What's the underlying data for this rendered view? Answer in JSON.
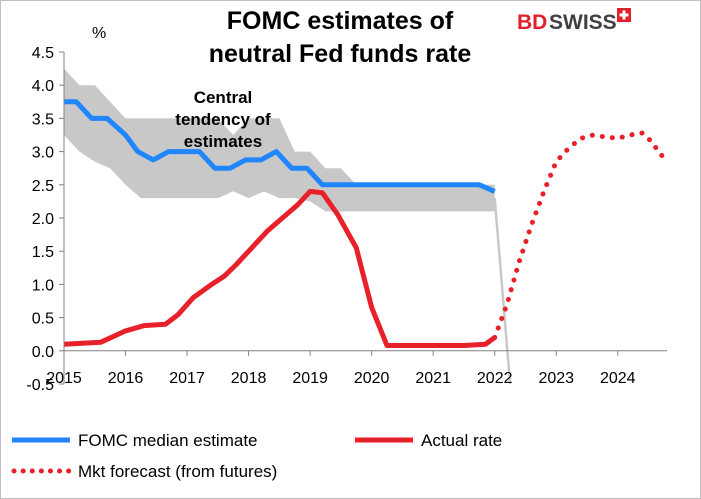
{
  "chart_data": {
    "type": "line",
    "title_lines": [
      "FOMC estimates of",
      "neutral Fed funds rate"
    ],
    "ylabel": "%",
    "ylim": [
      -0.5,
      4.5
    ],
    "xlim": [
      2015,
      2024.8
    ],
    "yticks": [
      "4.5",
      "4.0",
      "3.5",
      "3.0",
      "2.5",
      "2.0",
      "1.5",
      "1.0",
      "0.5",
      "0.0",
      "-0.5"
    ],
    "ytick_values": [
      4.5,
      4.0,
      3.5,
      3.0,
      2.5,
      2.0,
      1.5,
      1.0,
      0.5,
      0.0,
      -0.5
    ],
    "xticks": [
      "2015",
      "2016",
      "2017",
      "2018",
      "2019",
      "2020",
      "2021",
      "2022",
      "2023",
      "2024"
    ],
    "xtick_values": [
      2015,
      2016,
      2017,
      2018,
      2019,
      2020,
      2021,
      2022,
      2023,
      2024
    ],
    "annotation_lines": [
      "Central",
      "tendency of",
      "estimates"
    ],
    "band": {
      "name": "Central tendency of estimates",
      "x": [
        2015.0,
        2015.25,
        2015.5,
        2015.75,
        2016.0,
        2016.25,
        2016.5,
        2016.75,
        2017.0,
        2017.25,
        2017.5,
        2017.75,
        2018.0,
        2018.25,
        2018.5,
        2018.75,
        2019.0,
        2019.25,
        2019.5,
        2019.75,
        2020.0,
        2020.5,
        2021.0,
        2021.5,
        2022.0
      ],
      "upper": [
        4.25,
        4.0,
        4.0,
        3.75,
        3.5,
        3.5,
        3.5,
        3.5,
        3.5,
        3.5,
        3.5,
        3.25,
        3.5,
        3.5,
        3.5,
        3.0,
        3.0,
        2.75,
        2.75,
        2.5,
        2.5,
        2.5,
        2.5,
        2.5,
        2.5
      ],
      "lower": [
        3.25,
        3.0,
        2.85,
        2.75,
        2.5,
        2.3,
        2.3,
        2.3,
        2.3,
        2.3,
        2.3,
        2.4,
        2.3,
        2.4,
        2.3,
        2.3,
        2.25,
        2.1,
        2.1,
        2.1,
        2.1,
        2.1,
        2.1,
        2.1,
        2.1
      ],
      "color": "#c8c8c8"
    },
    "series": [
      {
        "name": "FOMC median estimate",
        "style": "solid",
        "color": "#1f86ff",
        "x": [
          2015.0,
          2015.2,
          2015.45,
          2015.7,
          2016.0,
          2016.2,
          2016.45,
          2016.7,
          2017.2,
          2017.45,
          2017.7,
          2017.95,
          2018.2,
          2018.45,
          2018.7,
          2018.95,
          2019.2,
          2019.45,
          2019.7,
          2020.0,
          2021.0,
          2021.75,
          2022.0
        ],
        "values": [
          3.75,
          3.75,
          3.5,
          3.5,
          3.25,
          3.0,
          2.875,
          3.0,
          3.0,
          2.75,
          2.75,
          2.875,
          2.875,
          3.0,
          2.75,
          2.75,
          2.5,
          2.5,
          2.5,
          2.5,
          2.5,
          2.5,
          2.4
        ]
      },
      {
        "name": "Actual rate",
        "style": "solid",
        "color": "#e8202a",
        "x": [
          2015.0,
          2015.6,
          2016.0,
          2016.3,
          2016.65,
          2016.85,
          2017.1,
          2017.4,
          2017.6,
          2017.8,
          2018.05,
          2018.3,
          2018.55,
          2018.8,
          2019.0,
          2019.2,
          2019.45,
          2019.75,
          2020.0,
          2020.25,
          2020.5,
          2021.0,
          2021.5,
          2021.85,
          2022.0
        ],
        "values": [
          0.1,
          0.13,
          0.3,
          0.38,
          0.4,
          0.54,
          0.8,
          1.0,
          1.12,
          1.3,
          1.55,
          1.8,
          2.0,
          2.2,
          2.4,
          2.38,
          2.05,
          1.55,
          0.65,
          0.08,
          0.08,
          0.08,
          0.08,
          0.1,
          0.2
        ]
      },
      {
        "name": "Mkt forecast (from futures)",
        "style": "dotted",
        "color": "#e8202a",
        "x": [
          2022.0,
          2022.2,
          2022.4,
          2022.6,
          2022.8,
          2023.0,
          2023.2,
          2023.4,
          2023.6,
          2023.8,
          2024.0,
          2024.2,
          2024.4,
          2024.55,
          2024.7,
          2024.8
        ],
        "values": [
          0.2,
          0.7,
          1.35,
          1.9,
          2.4,
          2.85,
          3.05,
          3.2,
          3.25,
          3.22,
          3.2,
          3.25,
          3.28,
          3.15,
          2.95,
          2.9
        ]
      },
      {
        "name": "connector",
        "style": "solid",
        "color": "#c8c8c8",
        "x": [
          2022.0,
          2022.25
        ],
        "values": [
          2.3,
          -0.5
        ]
      }
    ],
    "legend_placement": "bottom"
  },
  "logo": {
    "brand_part1": "BD",
    "brand_part2": "SWISS",
    "accent_color": "#e0202a",
    "name": "bdswiss-logo"
  }
}
